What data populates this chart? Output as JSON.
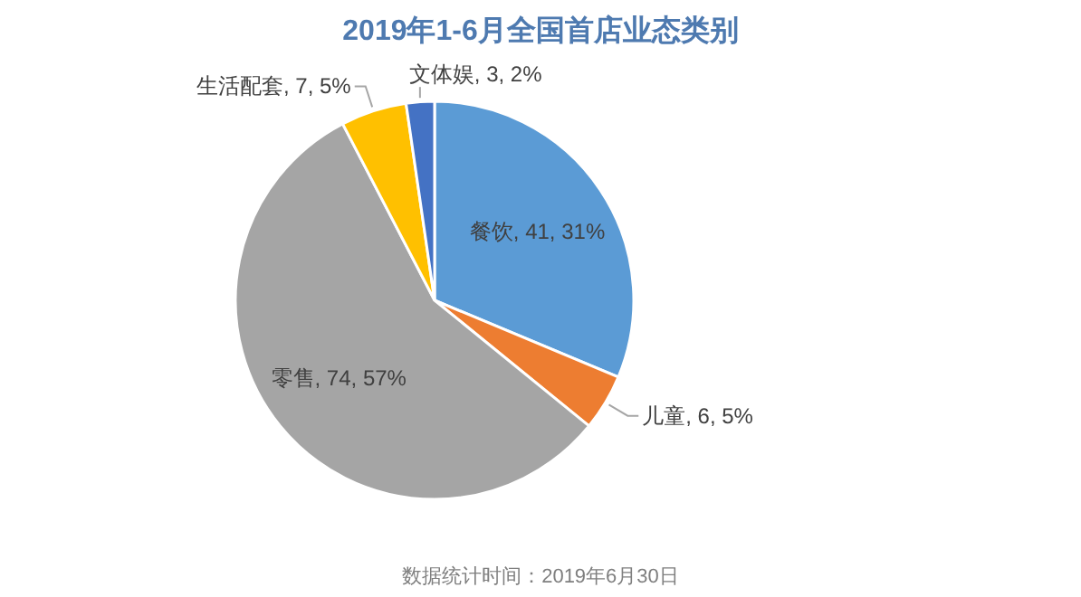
{
  "chart_data": {
    "type": "pie",
    "title": "2019年1-6月全国首店业态类别",
    "categories": [
      "餐饮",
      "儿童",
      "零售",
      "生活配套",
      "文体娱"
    ],
    "values": [
      41,
      6,
      74,
      7,
      3
    ],
    "value_labels": [
      "41, 31%",
      "6, 5%",
      "74, 57%",
      "7, 5%",
      "3, 2%"
    ],
    "colors": [
      "#5b9bd5",
      "#ed7d31",
      "#a5a5a5",
      "#ffc000",
      "#4472c4"
    ],
    "annotations": [
      "数据统计时间：2019年6月30日"
    ]
  }
}
